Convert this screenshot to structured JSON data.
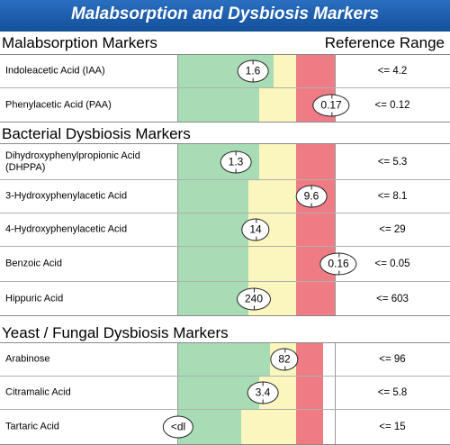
{
  "header": {
    "title": "Malabsorption and Dysbiosis Markers"
  },
  "reference_header": "Reference Range",
  "sections": [
    {
      "title": "Malabsorption Markers",
      "rows": [
        {
          "label": "Indoleacetic Acid (IAA)",
          "value": "1.6",
          "reference": "<= 4.2"
        },
        {
          "label": "Phenylacetic Acid (PAA)",
          "value": "0.17",
          "reference": "<= 0.12"
        }
      ]
    },
    {
      "title": "Bacterial Dysbiosis Markers",
      "rows": [
        {
          "label": "Dihydroxyphenylpropionic Acid (DHPPA)",
          "value": "1.3",
          "reference": "<= 5.3"
        },
        {
          "label": "3-Hydroxyphenylacetic Acid",
          "value": "9.6",
          "reference": "<= 8.1"
        },
        {
          "label": "4-Hydroxyphenylacetic Acid",
          "value": "14",
          "reference": "<= 29"
        },
        {
          "label": "Benzoic Acid",
          "value": "0.16",
          "reference": "<= 0.05"
        },
        {
          "label": "Hippuric Acid",
          "value": "240",
          "reference": "<= 603"
        }
      ]
    },
    {
      "title": "Yeast / Fungal Dysbiosis Markers",
      "rows": [
        {
          "label": "Arabinose",
          "value": "82",
          "reference": "<= 96"
        },
        {
          "label": "Citramalic Acid",
          "value": "3.4",
          "reference": "<= 5.8"
        },
        {
          "label": "Tartaric Acid",
          "value": "<dl",
          "reference": "<= 15"
        }
      ]
    }
  ],
  "colors": {
    "banner": "#1f5fae",
    "normal_zone": "#a8dcb5",
    "borderline_zone": "#fbf6bd",
    "high_zone": "#ef7b85"
  }
}
